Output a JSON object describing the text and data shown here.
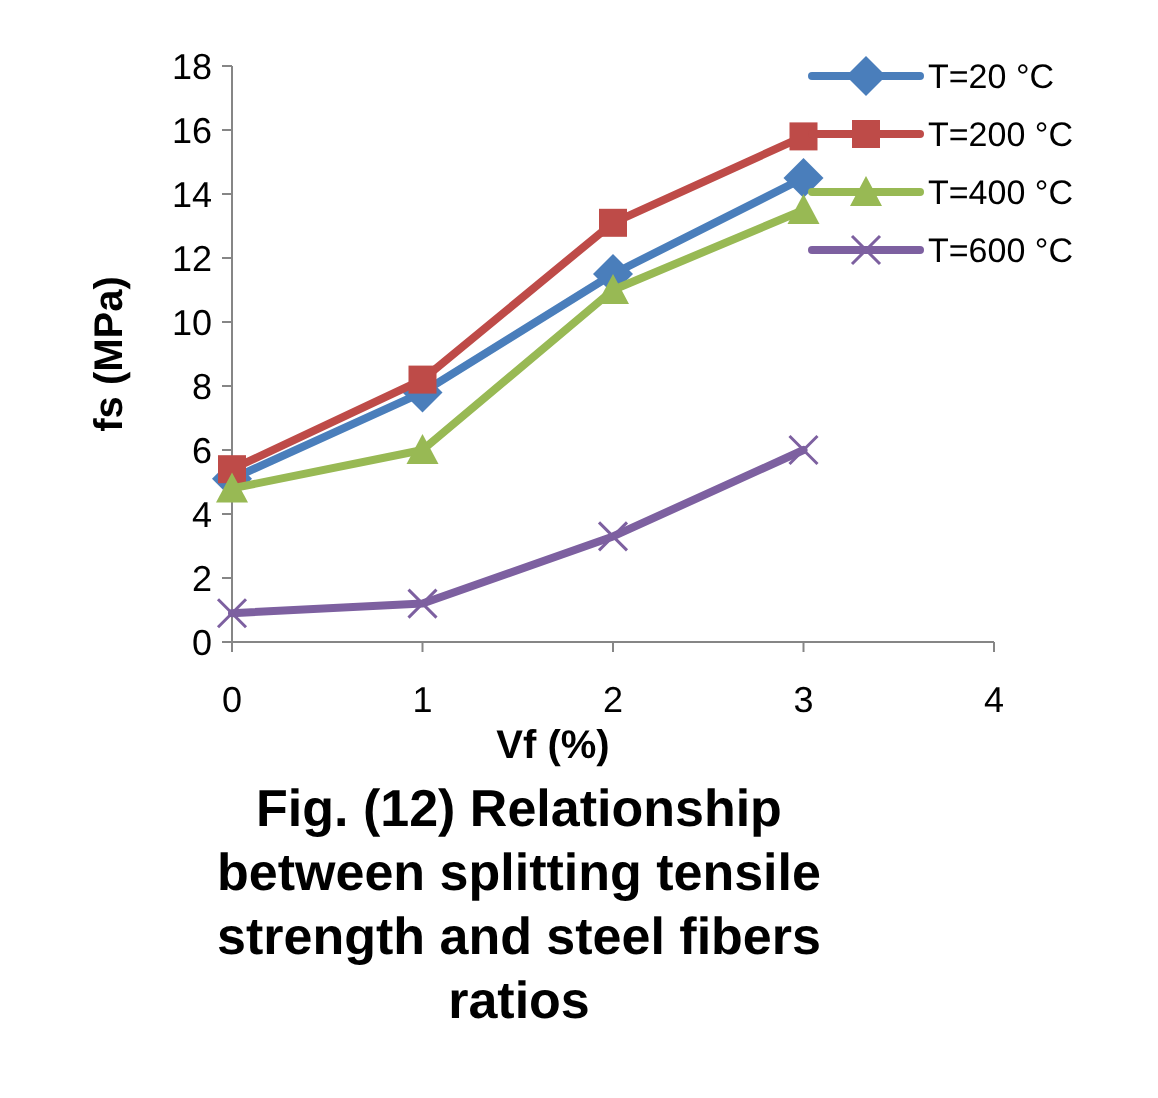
{
  "chart_data": {
    "type": "line",
    "title": "Fig. (12) Relationship between splitting tensile strength and steel fibers ratios",
    "xlabel": "Vf (%)",
    "ylabel": "fs (MPa)",
    "x": [
      0,
      1,
      2,
      3
    ],
    "series": [
      {
        "name": "T=20 °C",
        "color": "#4a7ebb",
        "marker": "diamond",
        "values": [
          5.1,
          7.8,
          11.5,
          14.5
        ]
      },
      {
        "name": "T=200 °C",
        "color": "#be4b48",
        "marker": "square",
        "values": [
          5.4,
          8.2,
          13.1,
          15.8
        ]
      },
      {
        "name": "T=400 °C",
        "color": "#98b954",
        "marker": "triangle",
        "values": [
          4.8,
          6.0,
          11.0,
          13.5
        ]
      },
      {
        "name": "T=600 °C",
        "color": "#7d60a0",
        "marker": "cross",
        "values": [
          0.9,
          1.2,
          3.3,
          6.0
        ]
      }
    ],
    "xlim": [
      0,
      4
    ],
    "xticks": [
      0,
      1,
      2,
      3,
      4
    ],
    "ylim": [
      0,
      18
    ],
    "yticks": [
      0,
      2,
      4,
      6,
      8,
      10,
      12,
      14,
      16,
      18
    ],
    "grid": false,
    "legend": "top right",
    "line_style": "solid"
  }
}
